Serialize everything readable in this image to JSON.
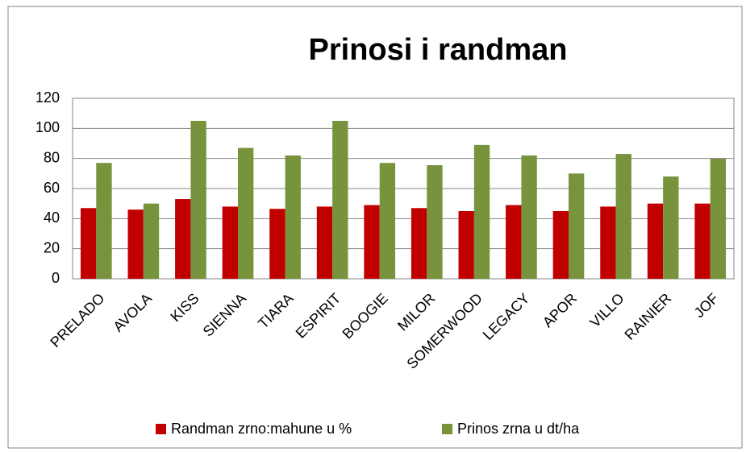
{
  "chart_data": {
    "type": "bar",
    "title": "Prinosi i randman",
    "categories": [
      "PRELADO",
      "AVOLA",
      "KISS",
      "SIENNA",
      "TIARA",
      "ESPIRIT",
      "BOOGIE",
      "MILOR",
      "SOMERWOOD",
      "LEGACY",
      "APOR",
      "VILLO",
      "RAINIER",
      "JOF"
    ],
    "series": [
      {
        "name": "Randman zrno:mahune u %",
        "color": "#c00000",
        "values": [
          47,
          46,
          53,
          48,
          46.5,
          48,
          49,
          47,
          45,
          49,
          45,
          48,
          50,
          50
        ]
      },
      {
        "name": "Prinos zrna u dt/ha",
        "color": "#77933c",
        "values": [
          77,
          50,
          105,
          87,
          82,
          105,
          77,
          75.5,
          89,
          82,
          70,
          83,
          68,
          80
        ]
      }
    ],
    "ylim": [
      0,
      120
    ],
    "yticks": [
      0,
      20,
      40,
      60,
      80,
      100,
      120
    ],
    "grid": true,
    "legend": "bottom"
  }
}
